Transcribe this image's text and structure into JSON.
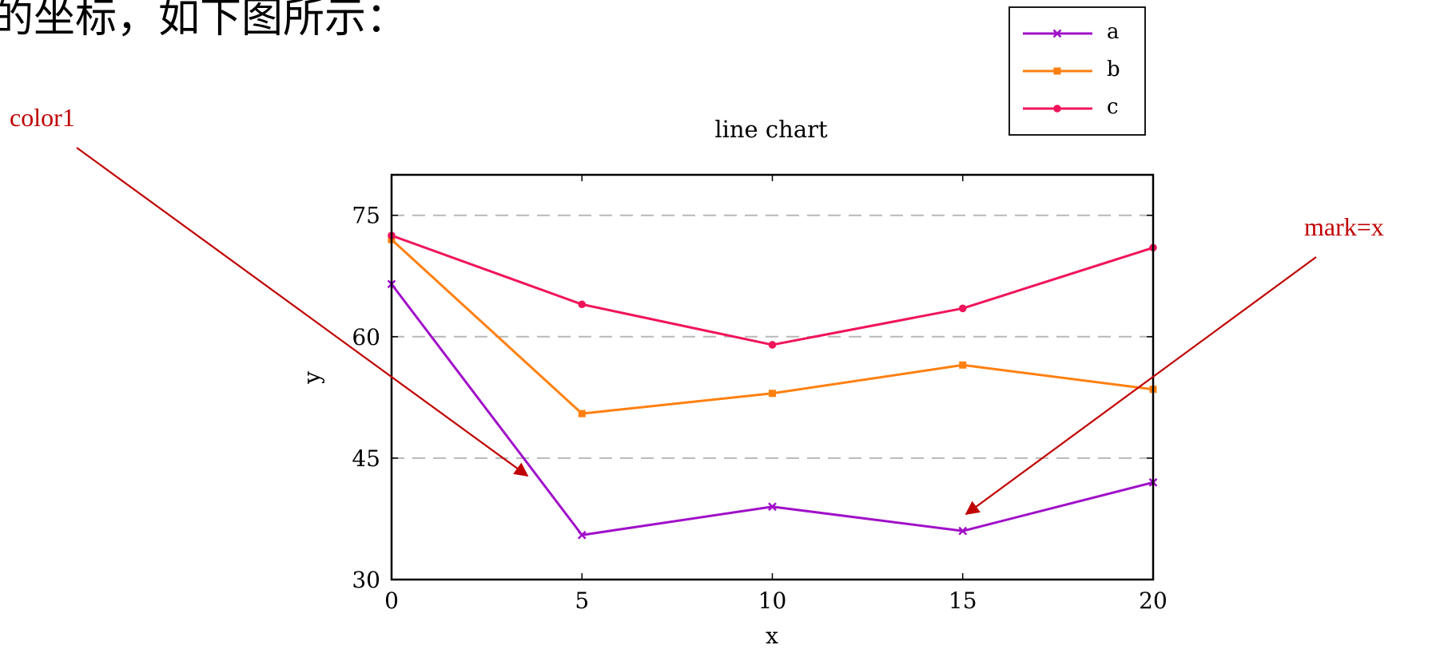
{
  "intro_text": "的坐标，如下图所示：",
  "annotations": {
    "left_label": "color1",
    "right_label": "mark=x",
    "color": "#c00000"
  },
  "chart_data": {
    "type": "line",
    "title": "line chart",
    "xlabel": "x",
    "ylabel": "y",
    "x": [
      0,
      5,
      10,
      15,
      20
    ],
    "xlim": [
      0,
      20
    ],
    "ylim": [
      30,
      80
    ],
    "xticks": [
      "0",
      "5",
      "10",
      "15",
      "20"
    ],
    "yticks": [
      "30",
      "45",
      "60",
      "75"
    ],
    "grid": "horizontal dashed at 45, 60, 75",
    "legend_position": "above plot, top-right",
    "series": [
      {
        "name": "a",
        "color": "#a010c8",
        "marker": "x",
        "values": [
          66.5,
          35.5,
          39,
          36,
          42
        ]
      },
      {
        "name": "b",
        "color": "#ff8010",
        "marker": "square",
        "values": [
          72,
          50.5,
          53,
          56.5,
          53.5
        ]
      },
      {
        "name": "c",
        "color": "#f0145a",
        "marker": "circle",
        "values": [
          72.5,
          64,
          59,
          63.5,
          71
        ]
      }
    ]
  }
}
